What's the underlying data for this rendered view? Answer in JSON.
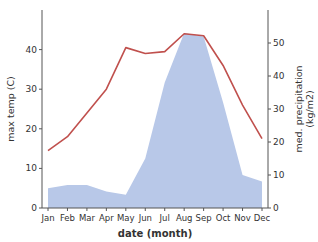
{
  "chart_data": {
    "type": "line",
    "xlabel": "date (month)",
    "ylabel": "max temp (C)",
    "y2label": "med. precipitation\n(kg/m2)",
    "categories": [
      "Jan",
      "Feb",
      "Mar",
      "Apr",
      "May",
      "Jun",
      "Jul",
      "Aug",
      "Sep",
      "Oct",
      "Nov",
      "Dec"
    ],
    "series": [
      {
        "type": "area",
        "axis": "y2",
        "color": "#b8c8e8",
        "values": [
          6,
          7,
          7,
          5,
          4,
          15,
          38,
          53,
          52,
          32,
          10,
          8
        ]
      },
      {
        "type": "line",
        "color": "#c0504d",
        "values": [
          14.5,
          18.0,
          24.0,
          30.0,
          40.5,
          39.0,
          39.5,
          44.0,
          43.5,
          36.0,
          26.0,
          17.5
        ]
      }
    ],
    "ylim": [
      0,
      50
    ],
    "yticks": [
      0,
      10,
      20,
      30,
      40
    ],
    "y2lim": [
      0,
      60
    ],
    "y2ticks": [
      0,
      10,
      20,
      30,
      40,
      50
    ],
    "grid": false
  }
}
